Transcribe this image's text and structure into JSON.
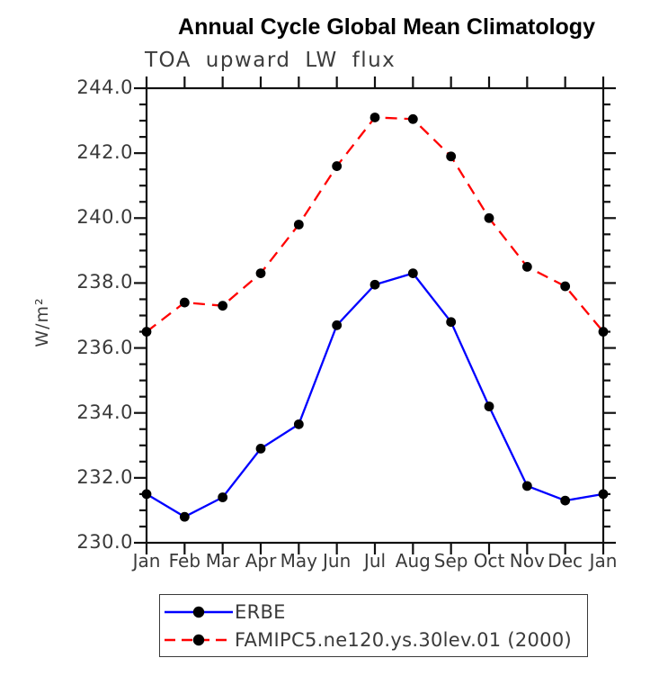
{
  "title": "Annual Cycle Global Mean Climatology",
  "subtitle": "TOA upward LW flux",
  "ylabel": "W/m²",
  "chart_data": {
    "type": "line",
    "x_categories": [
      "Jan",
      "Feb",
      "Mar",
      "Apr",
      "May",
      "Jun",
      "Jul",
      "Aug",
      "Sep",
      "Oct",
      "Nov",
      "Dec",
      "Jan"
    ],
    "ylim": [
      230.0,
      244.0
    ],
    "y_major_step": 2.0,
    "y_minor_step": 0.5,
    "y_tick_labels": [
      "244.0",
      "242.0",
      "240.0",
      "238.0",
      "236.0",
      "234.0",
      "232.0",
      "230.0"
    ],
    "grid": false,
    "legend_position": "bottom",
    "axis_color": "#111111",
    "label_color": "#3a3a3a",
    "series": [
      {
        "name": "ERBE",
        "color": "#0000ff",
        "style": "solid",
        "marker": "circle",
        "marker_color": "#000000",
        "values": [
          231.5,
          230.8,
          231.4,
          232.9,
          233.65,
          236.7,
          237.95,
          238.3,
          236.8,
          234.2,
          231.75,
          231.3,
          231.5
        ]
      },
      {
        "name": "FAMIPC5.ne120.ys.30lev.01 (2000)",
        "color": "#ff0000",
        "style": "dashed",
        "marker": "circle",
        "marker_color": "#000000",
        "values": [
          236.5,
          237.4,
          237.3,
          238.3,
          239.8,
          241.6,
          243.1,
          243.05,
          241.9,
          240.0,
          238.5,
          237.9,
          236.5
        ]
      }
    ]
  }
}
